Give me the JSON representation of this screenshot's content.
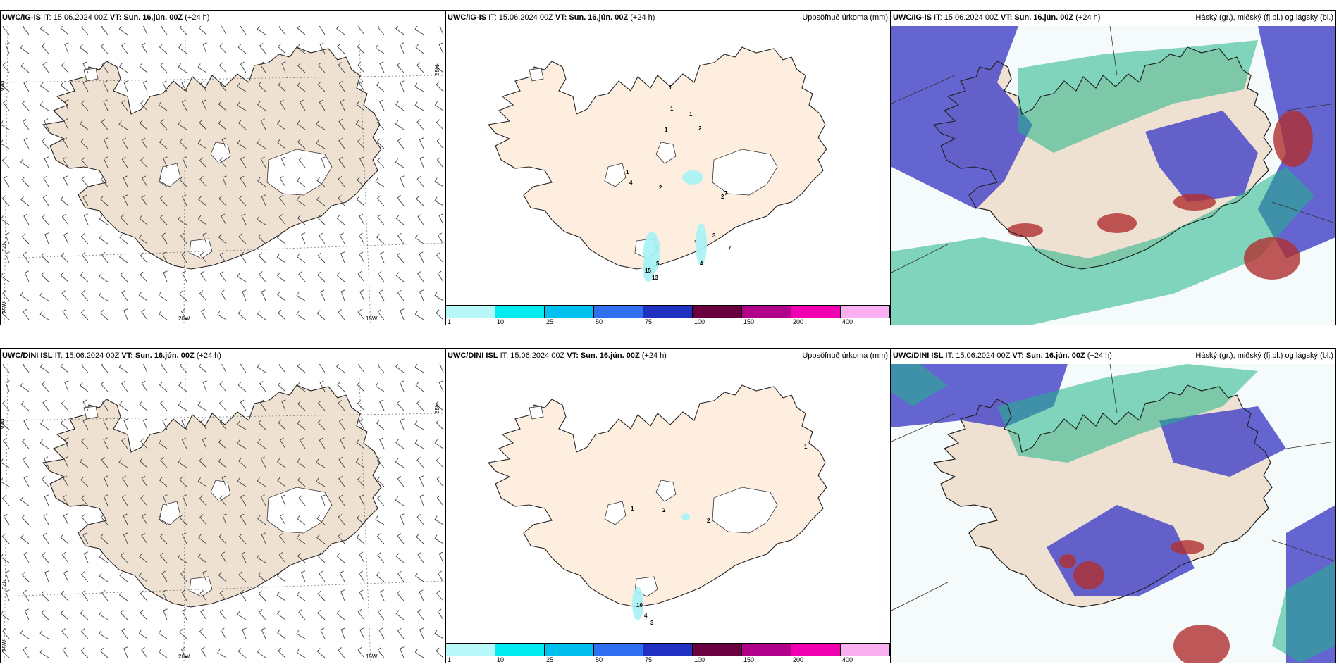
{
  "panels": [
    {
      "id": "p1",
      "model": "UWC/IG-IS",
      "it": "IT: 15.06.2024 00Z",
      "vt_label": "VT:",
      "vt": "Sun. 16.jún. 00Z",
      "lead": "(+24 h)",
      "title_right": "",
      "type": "wind",
      "lat_labels": [
        "66N",
        "64N",
        "65N"
      ],
      "lon_labels": [
        "25W",
        "20W",
        "15W"
      ]
    },
    {
      "id": "p2",
      "model": "UWC/IG-IS",
      "it": "IT: 15.06.2024 00Z",
      "vt_label": "VT:",
      "vt": "Sun. 16.jún. 00Z",
      "lead": "(+24 h)",
      "title_right": "Uppsöfnuð úrkoma (mm)",
      "type": "precip",
      "numbers": [
        "1",
        "1",
        "1",
        "1",
        "2",
        "1",
        "4",
        "2",
        "2",
        "7",
        "1",
        "7",
        "3",
        "5",
        "4",
        "15",
        "13"
      ]
    },
    {
      "id": "p3",
      "model": "UWC/IG-IS",
      "it": "IT: 15.06.2024 00Z",
      "vt_label": "VT:",
      "vt": "Sun. 16.jún. 00Z",
      "lead": "(+24 h)",
      "title_right": "Háský (gr.), miðský (fj.bl.) og lágský (bl.)",
      "type": "cloud"
    },
    {
      "id": "p4",
      "model": "UWC/DINI ISL",
      "it": "IT: 15.06.2024 00Z",
      "vt_label": "VT:",
      "vt": "Sun. 16.jún. 00Z",
      "lead": "(+24 h)",
      "title_right": "",
      "type": "wind",
      "lat_labels": [
        "66N",
        "64N",
        "65N"
      ],
      "lon_labels": [
        "25W",
        "20W",
        "15W"
      ]
    },
    {
      "id": "p5",
      "model": "UWC/DINI ISL",
      "it": "IT: 15.06.2024 00Z",
      "vt_label": "VT:",
      "vt": "Sun. 16.jún. 00Z",
      "lead": "(+24 h)",
      "title_right": "Uppsöfnuð úrkoma (mm)",
      "type": "precip",
      "numbers": [
        "1",
        "1",
        "2",
        "2",
        "10",
        "4",
        "3"
      ]
    },
    {
      "id": "p6",
      "model": "UWC/DINI ISL",
      "it": "IT: 15.06.2024 00Z",
      "vt_label": "VT:",
      "vt": "Sun. 16.jún. 00Z",
      "lead": "(+24 h)",
      "title_right": "Háský (gr.), miðský (fj.bl.) og lágský (bl.)",
      "type": "cloud"
    }
  ],
  "colorbar": {
    "ticks": [
      "1",
      "10",
      "25",
      "50",
      "75",
      "100",
      "150",
      "200",
      "400"
    ],
    "colors": [
      "#b8f8f8",
      "#00eaf0",
      "#00c0f0",
      "#3070f0",
      "#2030c0",
      "#6a0040",
      "#b0008a",
      "#f000b0",
      "#f8b0f0"
    ]
  },
  "colors": {
    "land": "#efe1d2",
    "land_precip": "#fdeee0",
    "high_cloud": "#20b488",
    "mid_cloud": "#4a4ac8",
    "low_cloud": "#b03030"
  }
}
